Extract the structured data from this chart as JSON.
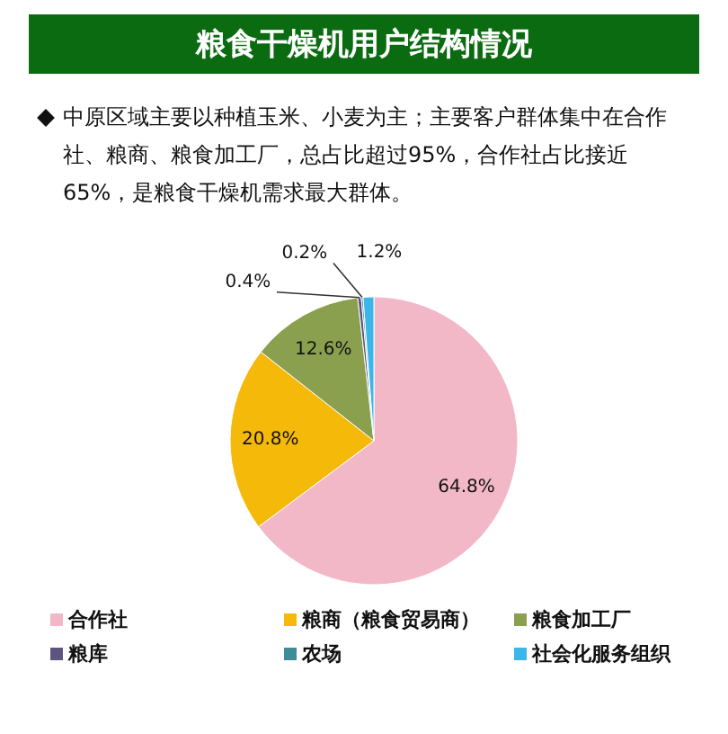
{
  "chart_data": {
    "type": "pie",
    "title": "粮食干燥机用户结构情况",
    "subtitle": "中原区域主要以种植玉米、小麦为主；主要客户群体集中在合作社、粮商、粮食加工厂，总占比超过95%，合作社占比接近65%，是粮食干燥机需求最大群体。",
    "categories": [
      "合作社",
      "粮商（粮食贸易商）",
      "粮食加工厂",
      "粮库",
      "农场",
      "社会化服务组织"
    ],
    "values": [
      64.8,
      20.8,
      12.6,
      0.4,
      0.2,
      1.2
    ],
    "colors": [
      "#f2b8c8",
      "#f5b90a",
      "#8aa04e",
      "#5e5480",
      "#3f8c98",
      "#3bb6e8"
    ],
    "value_labels": [
      "64.8%",
      "20.8%",
      "12.6%",
      "0.4%",
      "0.2%",
      "1.2%"
    ],
    "legend": "bottom"
  }
}
